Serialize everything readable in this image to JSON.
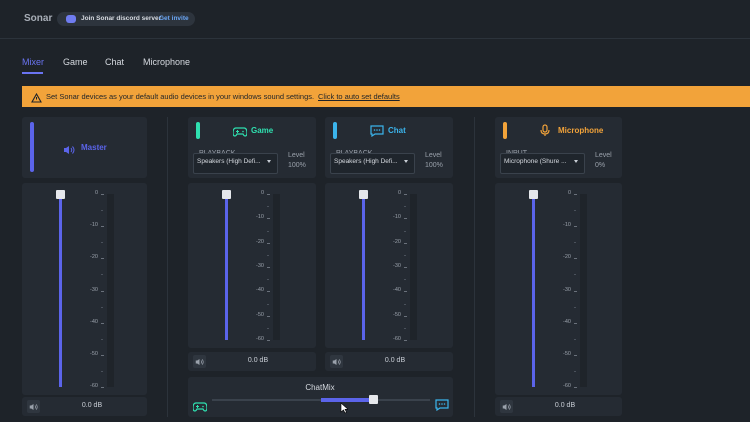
{
  "header": {
    "app_name": "Sonar",
    "discord": "Join Sonar discord server",
    "invite": "Get invite"
  },
  "tabs": [
    "Mixer",
    "Game",
    "Chat",
    "Microphone"
  ],
  "banner": {
    "message": "Set Sonar devices as your default audio devices in your windows sound settings.",
    "action": "Click to auto set defaults"
  },
  "scale": [
    "0",
    "-10",
    "-20",
    "-30",
    "-40",
    "-50",
    "-60"
  ],
  "channels": [
    {
      "name": "Master",
      "volume": "0.0 dB"
    },
    {
      "name": "Game",
      "device_label": "PLAYBACK",
      "device": "Speakers (High Defi...",
      "level_label": "Level",
      "level": "100%",
      "volume": "0.0 dB"
    },
    {
      "name": "Chat",
      "device_label": "PLAYBACK",
      "device": "Speakers (High Defi...",
      "level_label": "Level",
      "level": "100%",
      "volume": "0.0 dB"
    },
    {
      "name": "Microphone",
      "device_label": "INPUT",
      "device": "Microphone (Shure ...",
      "level_label": "Level",
      "level": "0%",
      "volume": "0.0 dB"
    }
  ],
  "chatmix": {
    "label": "ChatMix"
  }
}
